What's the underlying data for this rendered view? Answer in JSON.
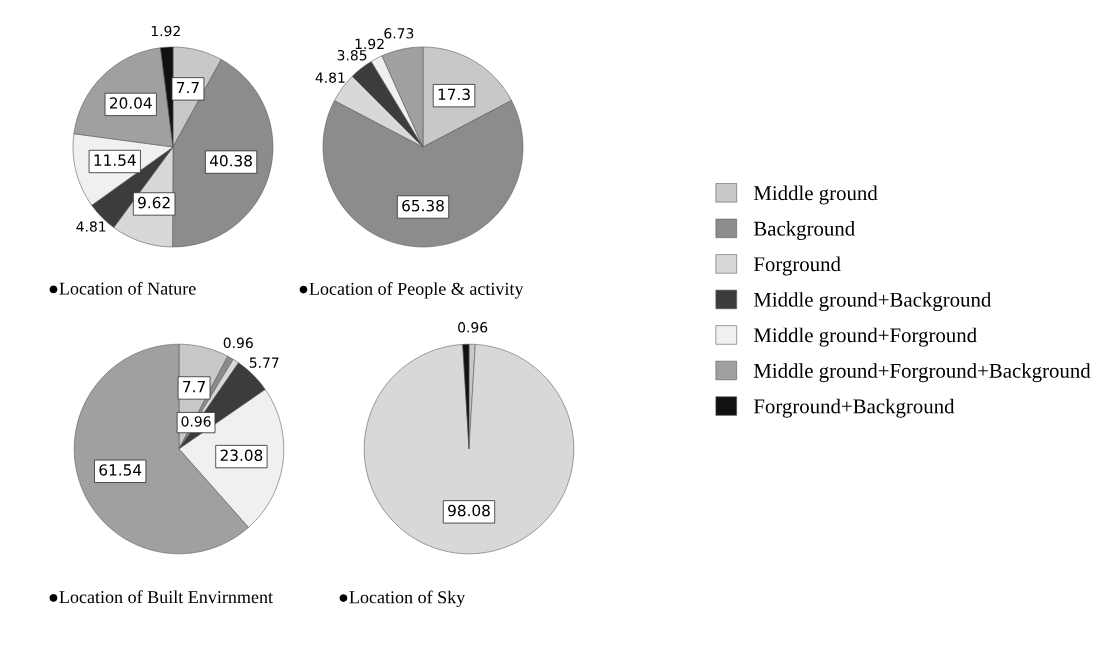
{
  "chart_data": [
    {
      "type": "pie",
      "title": "●Location of Nature",
      "legend": "right",
      "categories": [
        "Middle ground",
        "Background",
        "Forground",
        "Middle ground+Background",
        "Middle ground+Forground",
        "Middle ground+Forground+Background",
        "Forground+Background"
      ],
      "values": [
        7.7,
        40.38,
        9.62,
        4.81,
        11.54,
        20.04,
        1.92
      ],
      "value_labels": [
        "7.7",
        "40.38",
        "9.62",
        "4.81",
        "11.54",
        "20.04",
        "1.92"
      ],
      "colors": [
        "#c8c8c8",
        "#8c8c8c",
        "#d8d8d8",
        "#3c3c3c",
        "#f0f0f0",
        "#a0a0a0",
        "#111111"
      ]
    },
    {
      "type": "pie",
      "title": "●Location of People & activity",
      "categories": [
        null,
        null,
        null,
        null,
        null,
        null
      ],
      "values": [
        17.3,
        65.38,
        4.81,
        3.85,
        1.92,
        6.73
      ],
      "value_labels": [
        "17.3",
        "65.38",
        "4.81",
        "3.85",
        "1.92",
        "6.73"
      ],
      "colors": [
        "#c8c8c8",
        "#8c8c8c",
        "#d8d8d8",
        "#3c3c3c",
        "#f0f0f0",
        "#a0a0a0"
      ]
    },
    {
      "type": "pie",
      "title": "●Location of Built Envirnment",
      "categories": [
        null,
        null,
        null,
        null,
        null,
        null
      ],
      "values": [
        7.7,
        0.96,
        0.96,
        5.77,
        23.08,
        61.54
      ],
      "value_labels": [
        "7.7",
        "0.96",
        "0.96",
        "5.77",
        "23.08",
        "61.54"
      ],
      "colors": [
        "#c8c8c8",
        "#8c8c8c",
        "#d8d8d8",
        "#3c3c3c",
        "#f0f0f0",
        "#a0a0a0"
      ]
    },
    {
      "type": "pie",
      "title": "●Location of Sky",
      "categories": [
        null,
        null,
        null
      ],
      "values": [
        0.96,
        98.08,
        0.96
      ],
      "value_labels": [
        "0.96",
        "98.08",
        null
      ],
      "colors": [
        "#c8c8c8",
        "#d8d8d8",
        "#111111"
      ]
    }
  ]
}
